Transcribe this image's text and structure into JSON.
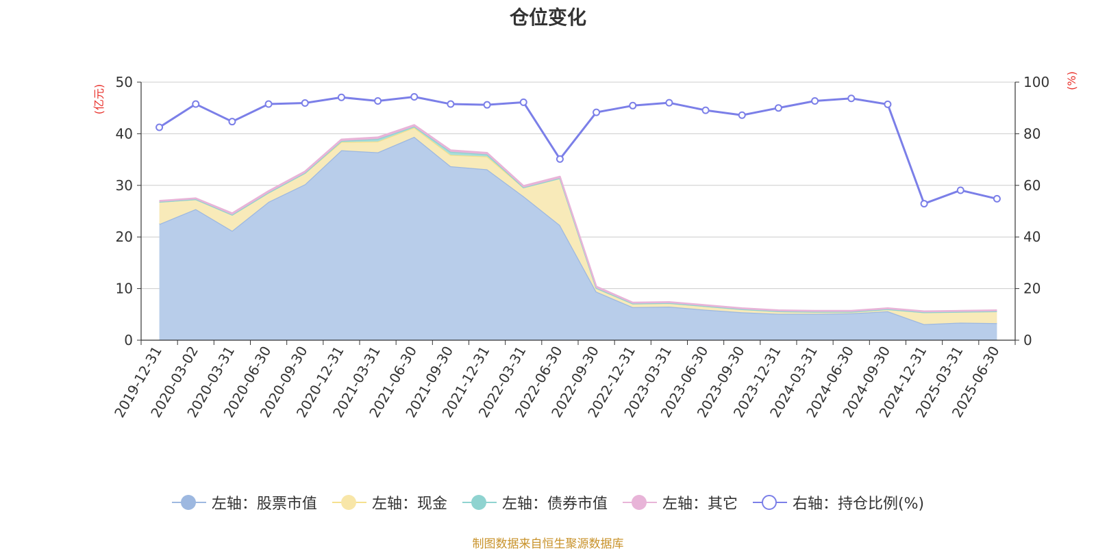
{
  "title": "仓位变化",
  "source": "制图数据来自恒生聚源数据库",
  "chart_data": {
    "type": "area",
    "title": "仓位变化",
    "ylabel_left": "(亿元)",
    "ylabel_right": "(%)",
    "ylim_left": [
      0,
      50
    ],
    "ylim_right": [
      0,
      100
    ],
    "yticks_left": [
      0,
      10,
      20,
      30,
      40,
      50
    ],
    "yticks_right": [
      0,
      20,
      40,
      60,
      80,
      100
    ],
    "grid": true,
    "legend_position": "bottom",
    "categories": [
      "2019-12-31",
      "2020-03-02",
      "2020-03-31",
      "2020-06-30",
      "2020-09-30",
      "2020-12-31",
      "2021-03-31",
      "2021-06-30",
      "2021-09-30",
      "2021-12-31",
      "2022-03-31",
      "2022-06-30",
      "2022-09-30",
      "2022-12-31",
      "2023-03-31",
      "2023-06-30",
      "2023-09-30",
      "2023-12-31",
      "2024-03-31",
      "2024-06-30",
      "2024-09-30",
      "2024-12-31",
      "2025-03-31",
      "2025-06-30"
    ],
    "series": [
      {
        "name": "左轴：股票市值",
        "axis": "left",
        "type": "area",
        "color": "#9db8e0",
        "fill": "#b8cdea",
        "values": [
          22.5,
          25.4,
          21.2,
          26.8,
          30.2,
          36.8,
          36.4,
          39.4,
          33.7,
          33.1,
          27.9,
          22.3,
          9.4,
          6.4,
          6.5,
          5.9,
          5.4,
          5.1,
          5.1,
          5.2,
          5.6,
          3.1,
          3.4,
          3.3
        ]
      },
      {
        "name": "左轴：现金",
        "axis": "left",
        "type": "area",
        "color": "#f5e08e",
        "fill": "#f8eab9",
        "values": [
          4.3,
          1.9,
          3.1,
          1.8,
          2.2,
          1.6,
          2.1,
          1.8,
          2.2,
          2.5,
          1.7,
          9.1,
          0.7,
          0.7,
          0.7,
          0.7,
          0.6,
          0.5,
          0.4,
          0.3,
          0.4,
          2.3,
          2.1,
          2.3
        ]
      },
      {
        "name": "左轴：债券市值",
        "axis": "left",
        "type": "area",
        "color": "#8fd3d0",
        "fill": "#a8ddd9",
        "values": [
          0,
          0,
          0,
          0,
          0,
          0.2,
          0.5,
          0.2,
          0.6,
          0.4,
          0,
          0,
          0,
          0,
          0,
          0,
          0,
          0,
          0,
          0,
          0,
          0,
          0,
          0
        ]
      },
      {
        "name": "左轴：其它",
        "axis": "left",
        "type": "area",
        "color": "#e8b4d8",
        "fill": "#e8b4d8",
        "values": [
          0.2,
          0.2,
          0.3,
          0.3,
          0.3,
          0.3,
          0.3,
          0.3,
          0.3,
          0.3,
          0.3,
          0.3,
          0.3,
          0.2,
          0.2,
          0.2,
          0.2,
          0.2,
          0.2,
          0.2,
          0.2,
          0.2,
          0.2,
          0.2
        ]
      },
      {
        "name": "右轴：持仓比例(%)",
        "axis": "right",
        "type": "line",
        "color": "#7b7fe8",
        "values": [
          82.5,
          91.5,
          84.7,
          91.5,
          91.9,
          94.1,
          92.7,
          94.3,
          91.5,
          91.2,
          92.2,
          70.2,
          88.3,
          90.9,
          92.0,
          89.1,
          87.2,
          90.0,
          92.7,
          93.7,
          91.4,
          52.9,
          58.1,
          54.8
        ]
      }
    ]
  }
}
